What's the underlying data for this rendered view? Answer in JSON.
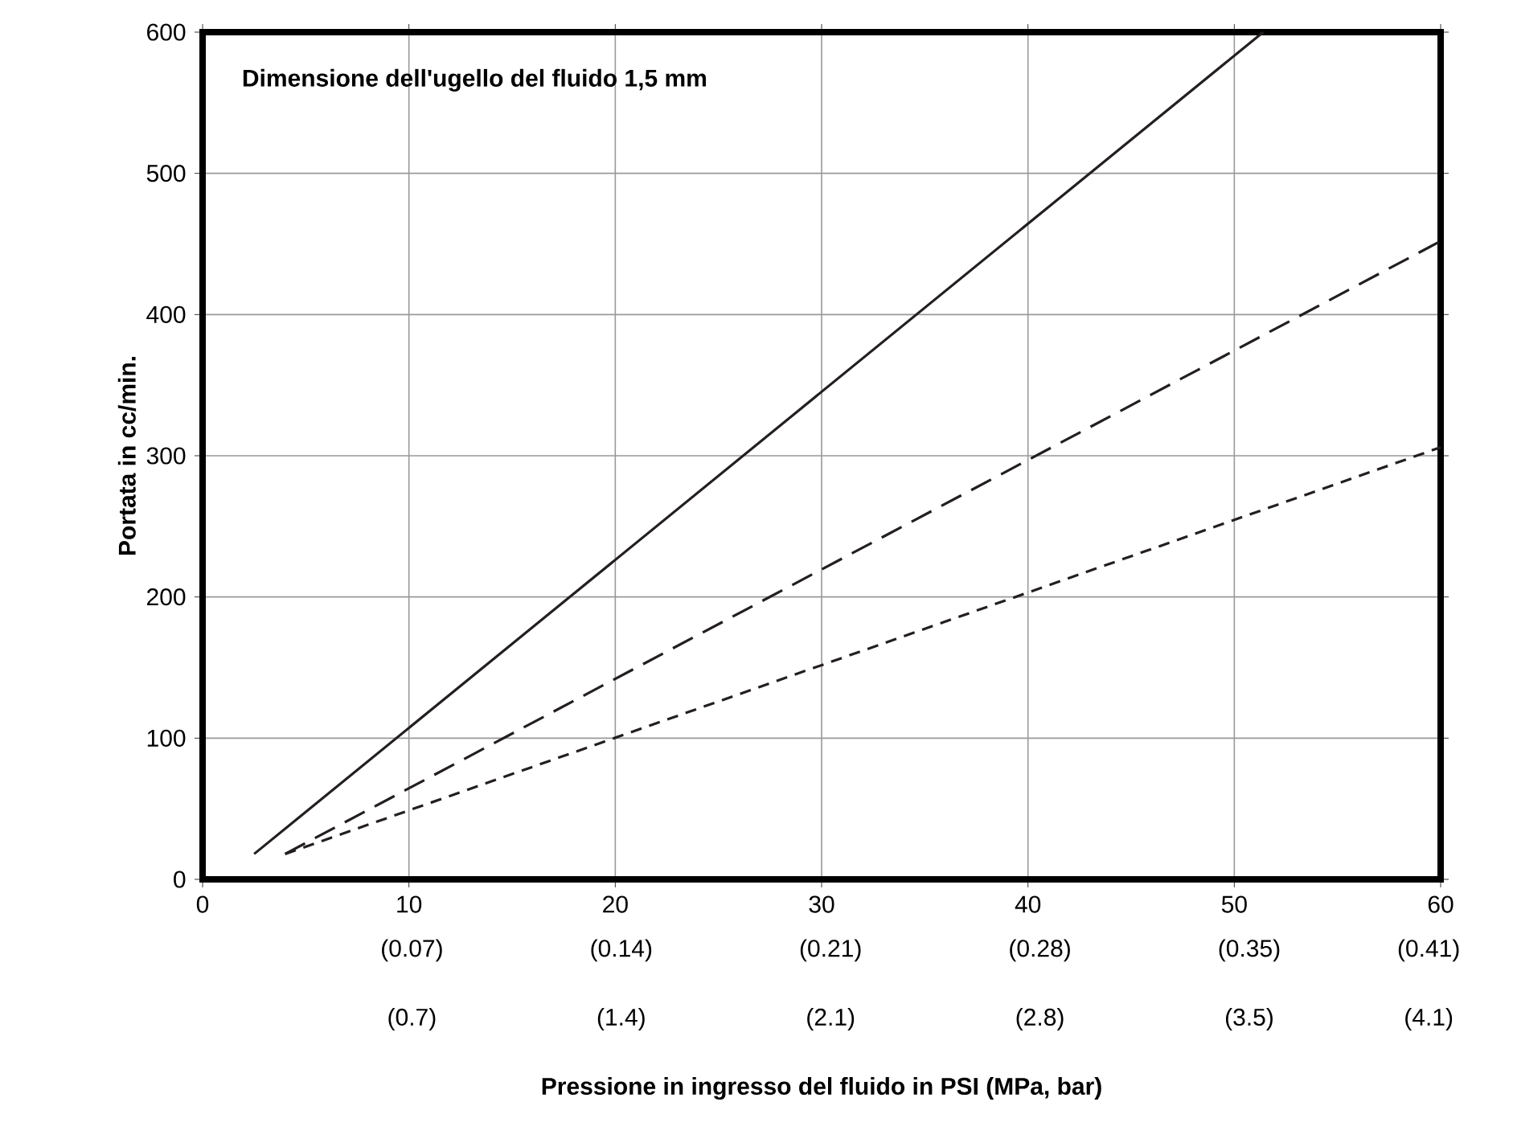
{
  "chart_data": {
    "type": "line",
    "title": "Dimensione dell'ugello del fluido 1,5 mm",
    "xlabel": "Pressione in ingresso del fluido in PSI (MPa, bar)",
    "ylabel": "Portata in cc/min.",
    "xlim": [
      0,
      60
    ],
    "ylim": [
      0,
      600
    ],
    "xticks": [
      0,
      10,
      20,
      30,
      40,
      50,
      60
    ],
    "x2lim": [
      0,
      0.414
    ],
    "x2ticks": [
      {
        "value": 0.07,
        "label": "(0.07)"
      },
      {
        "value": 0.14,
        "label": "(0.14)"
      },
      {
        "value": 0.21,
        "label": "(0.21)"
      },
      {
        "value": 0.28,
        "label": "(0.28)"
      },
      {
        "value": 0.35,
        "label": "(0.35)"
      },
      {
        "value": 0.41,
        "label": "(0.41)"
      }
    ],
    "annotations": [
      "(0.7)",
      "(1.4)",
      "(2.1)",
      "(2.8)",
      "(3.5)",
      "(4.1)"
    ],
    "yticks": [
      0,
      100,
      200,
      300,
      400,
      500,
      600
    ],
    "grid": true,
    "legend": false,
    "series": [
      {
        "color": "#231f20",
        "line_style": "solid",
        "x": [
          2.5,
          51.4
        ],
        "values": [
          18,
          600
        ]
      },
      {
        "color": "#231f20",
        "line_style": "dashed",
        "x": [
          4.0,
          60
        ],
        "values": [
          18,
          452
        ]
      },
      {
        "color": "#231f20",
        "line_style": "dotted",
        "x": [
          4.0,
          60
        ],
        "values": [
          18,
          306
        ]
      }
    ]
  }
}
